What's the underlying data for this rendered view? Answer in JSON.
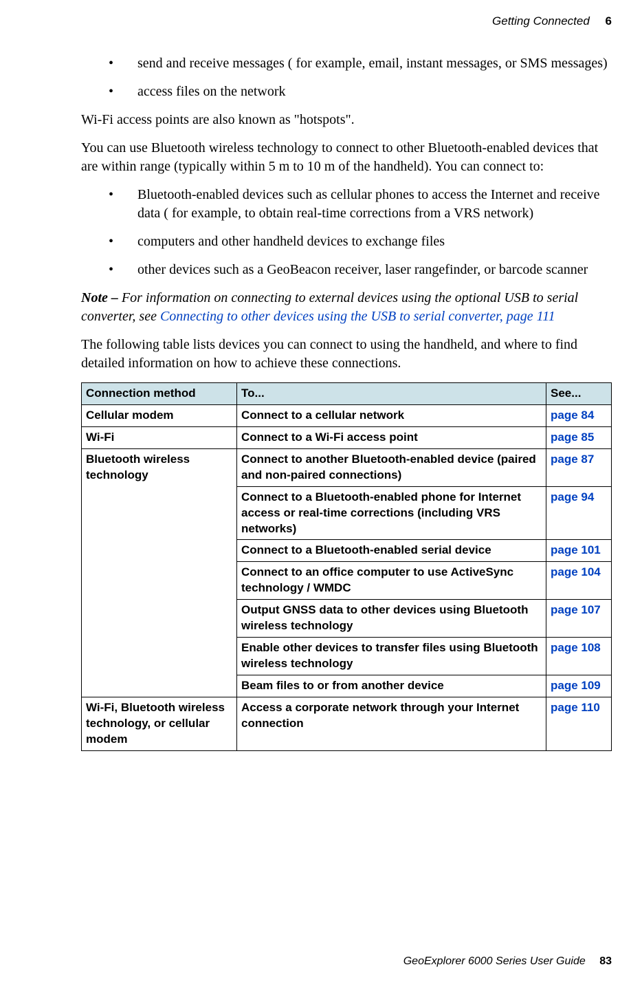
{
  "header": {
    "title": "Getting Connected",
    "chapter": "6"
  },
  "intro_bullets": [
    "send and receive messages ( for example, email, instant messages, or SMS messages)",
    "access files on the network"
  ],
  "para_hotspots": "Wi-Fi access points are also known as \"hotspots\".",
  "para_bluetooth_intro": "You can use Bluetooth wireless technology to connect to other Bluetooth-enabled devices that are within range (typically within 5 m to 10 m of the handheld). You can connect to:",
  "bt_bullets": [
    "Bluetooth-enabled devices such as cellular phones to access the Internet and receive data ( for example, to obtain real-time corrections from a VRS network)",
    "computers and other handheld devices to exchange files",
    "other devices such as a GeoBeacon receiver, laser rangefinder, or barcode scanner"
  ],
  "note": {
    "label": "Note – ",
    "text": "For information on connecting to external devices using the optional USB to serial converter, see ",
    "link_text": "Connecting to other devices using the USB to serial converter, page 111"
  },
  "para_table_intro": "The following table lists devices you can connect to using the handheld, and where to find detailed information on how to achieve these connections.",
  "table": {
    "columns": [
      "Connection method",
      "To...",
      "See..."
    ],
    "groups": [
      {
        "method": "Cellular modem",
        "rows": [
          {
            "to": "Connect to a cellular network",
            "see": "page 84"
          }
        ]
      },
      {
        "method": "Wi-Fi",
        "rows": [
          {
            "to": "Connect to a Wi-Fi access point",
            "see": "page 85"
          }
        ]
      },
      {
        "method": "Bluetooth wireless technology",
        "rows": [
          {
            "to": "Connect to another Bluetooth-enabled device (paired and non-paired connections)",
            "see": "page 87"
          },
          {
            "to": "Connect to a Bluetooth-enabled phone for Internet access or real-time corrections (including VRS networks)",
            "see": "page 94"
          },
          {
            "to": "Connect to a Bluetooth-enabled serial device",
            "see": "page 101"
          },
          {
            "to": "Connect to an office computer to use ActiveSync technology / WMDC",
            "see": "page 104"
          },
          {
            "to": "Output GNSS data to other devices using Bluetooth wireless technology",
            "see": "page 107"
          },
          {
            "to": "Enable other devices to transfer files using Bluetooth wireless technology",
            "see": "page 108"
          },
          {
            "to": "Beam files to or from another device",
            "see": "page 109"
          }
        ]
      },
      {
        "method": "Wi-Fi, Bluetooth wireless technology, or cellular modem",
        "rows": [
          {
            "to": "Access a corporate network through your Internet connection",
            "see": "page 110"
          }
        ]
      }
    ],
    "header_bg": "#cde2e8",
    "border_color": "#000000",
    "link_color": "#0040c0",
    "font_family": "Arial, Helvetica, sans-serif",
    "font_size_pt": 13
  },
  "footer": {
    "text": "GeoExplorer 6000 Series User Guide",
    "page": "83"
  },
  "colors": {
    "text": "#000000",
    "link": "#0040c0",
    "table_header_bg": "#cde2e8",
    "background": "#ffffff"
  }
}
